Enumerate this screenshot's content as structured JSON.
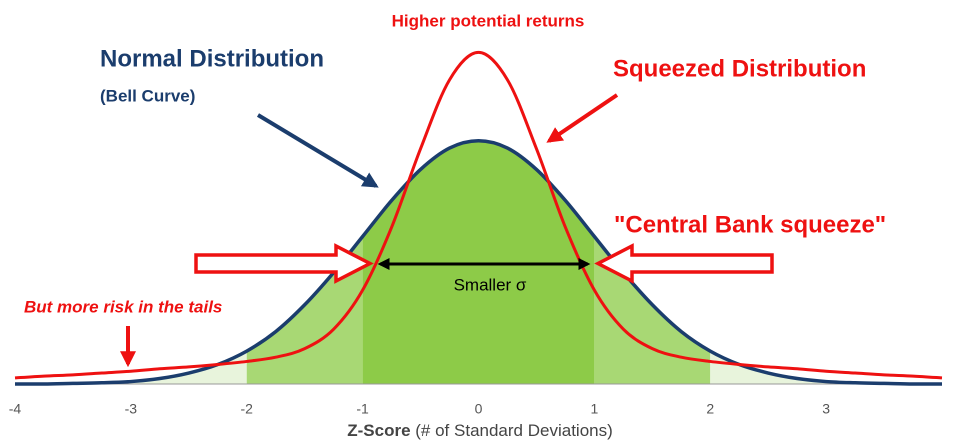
{
  "chart_data": {
    "type": "line",
    "title": "Higher potential returns",
    "annotations": {
      "normal": "Normal Distribution",
      "bell": "(Bell Curve)",
      "squeezed": "Squeezed Distribution",
      "squeeze": "\"Central Bank squeeze\"",
      "sigma": "Smaller σ",
      "tails": "But more risk in the tails"
    },
    "x_label": {
      "bold": "Z-Score",
      "rest": "(# of Standard Deviations)"
    },
    "x": [
      -4,
      -3.75,
      -3.5,
      -3.25,
      -3,
      -2.75,
      -2.5,
      -2.25,
      -2,
      -1.75,
      -1.5,
      -1.25,
      -1,
      -0.75,
      -0.5,
      -0.25,
      0,
      0.25,
      0.5,
      0.75,
      1,
      1.25,
      1.5,
      1.75,
      2,
      2.25,
      2.5,
      2.75,
      3,
      3.25,
      3.5,
      3.75,
      4
    ],
    "series": [
      {
        "name": "Normal Distribution",
        "color": "#1b3d6d",
        "values": [
          0,
          0,
          0.001,
          0.002,
          0.004,
          0.009,
          0.018,
          0.032,
          0.054,
          0.086,
          0.13,
          0.183,
          0.242,
          0.301,
          0.352,
          0.387,
          0.399,
          0.387,
          0.352,
          0.301,
          0.242,
          0.183,
          0.13,
          0.086,
          0.054,
          0.032,
          0.018,
          0.009,
          0.004,
          0.002,
          0.001,
          0,
          0
        ]
      },
      {
        "name": "Squeezed Distribution",
        "color": "#ee1111",
        "values": [
          0.01,
          0.013,
          0.015,
          0.018,
          0.021,
          0.025,
          0.028,
          0.032,
          0.037,
          0.044,
          0.058,
          0.09,
          0.154,
          0.257,
          0.386,
          0.499,
          0.544,
          0.499,
          0.386,
          0.257,
          0.154,
          0.09,
          0.058,
          0.044,
          0.037,
          0.032,
          0.028,
          0.025,
          0.021,
          0.018,
          0.015,
          0.013,
          0.01
        ]
      }
    ],
    "bands": [
      {
        "range": [
          -4,
          -2
        ],
        "color": "#e8f4dc"
      },
      {
        "range": [
          -2,
          -1
        ],
        "color": "#a8d874"
      },
      {
        "range": [
          -1,
          1
        ],
        "color": "#8dcb48"
      },
      {
        "range": [
          1,
          2
        ],
        "color": "#a8d874"
      },
      {
        "range": [
          2,
          4
        ],
        "color": "#e8f4dc"
      }
    ],
    "xlim": [
      -4,
      4
    ],
    "xticks": [
      -4,
      -3,
      -2,
      -1,
      0,
      1,
      2,
      3
    ],
    "ylim": [
      0,
      0.63
    ]
  }
}
